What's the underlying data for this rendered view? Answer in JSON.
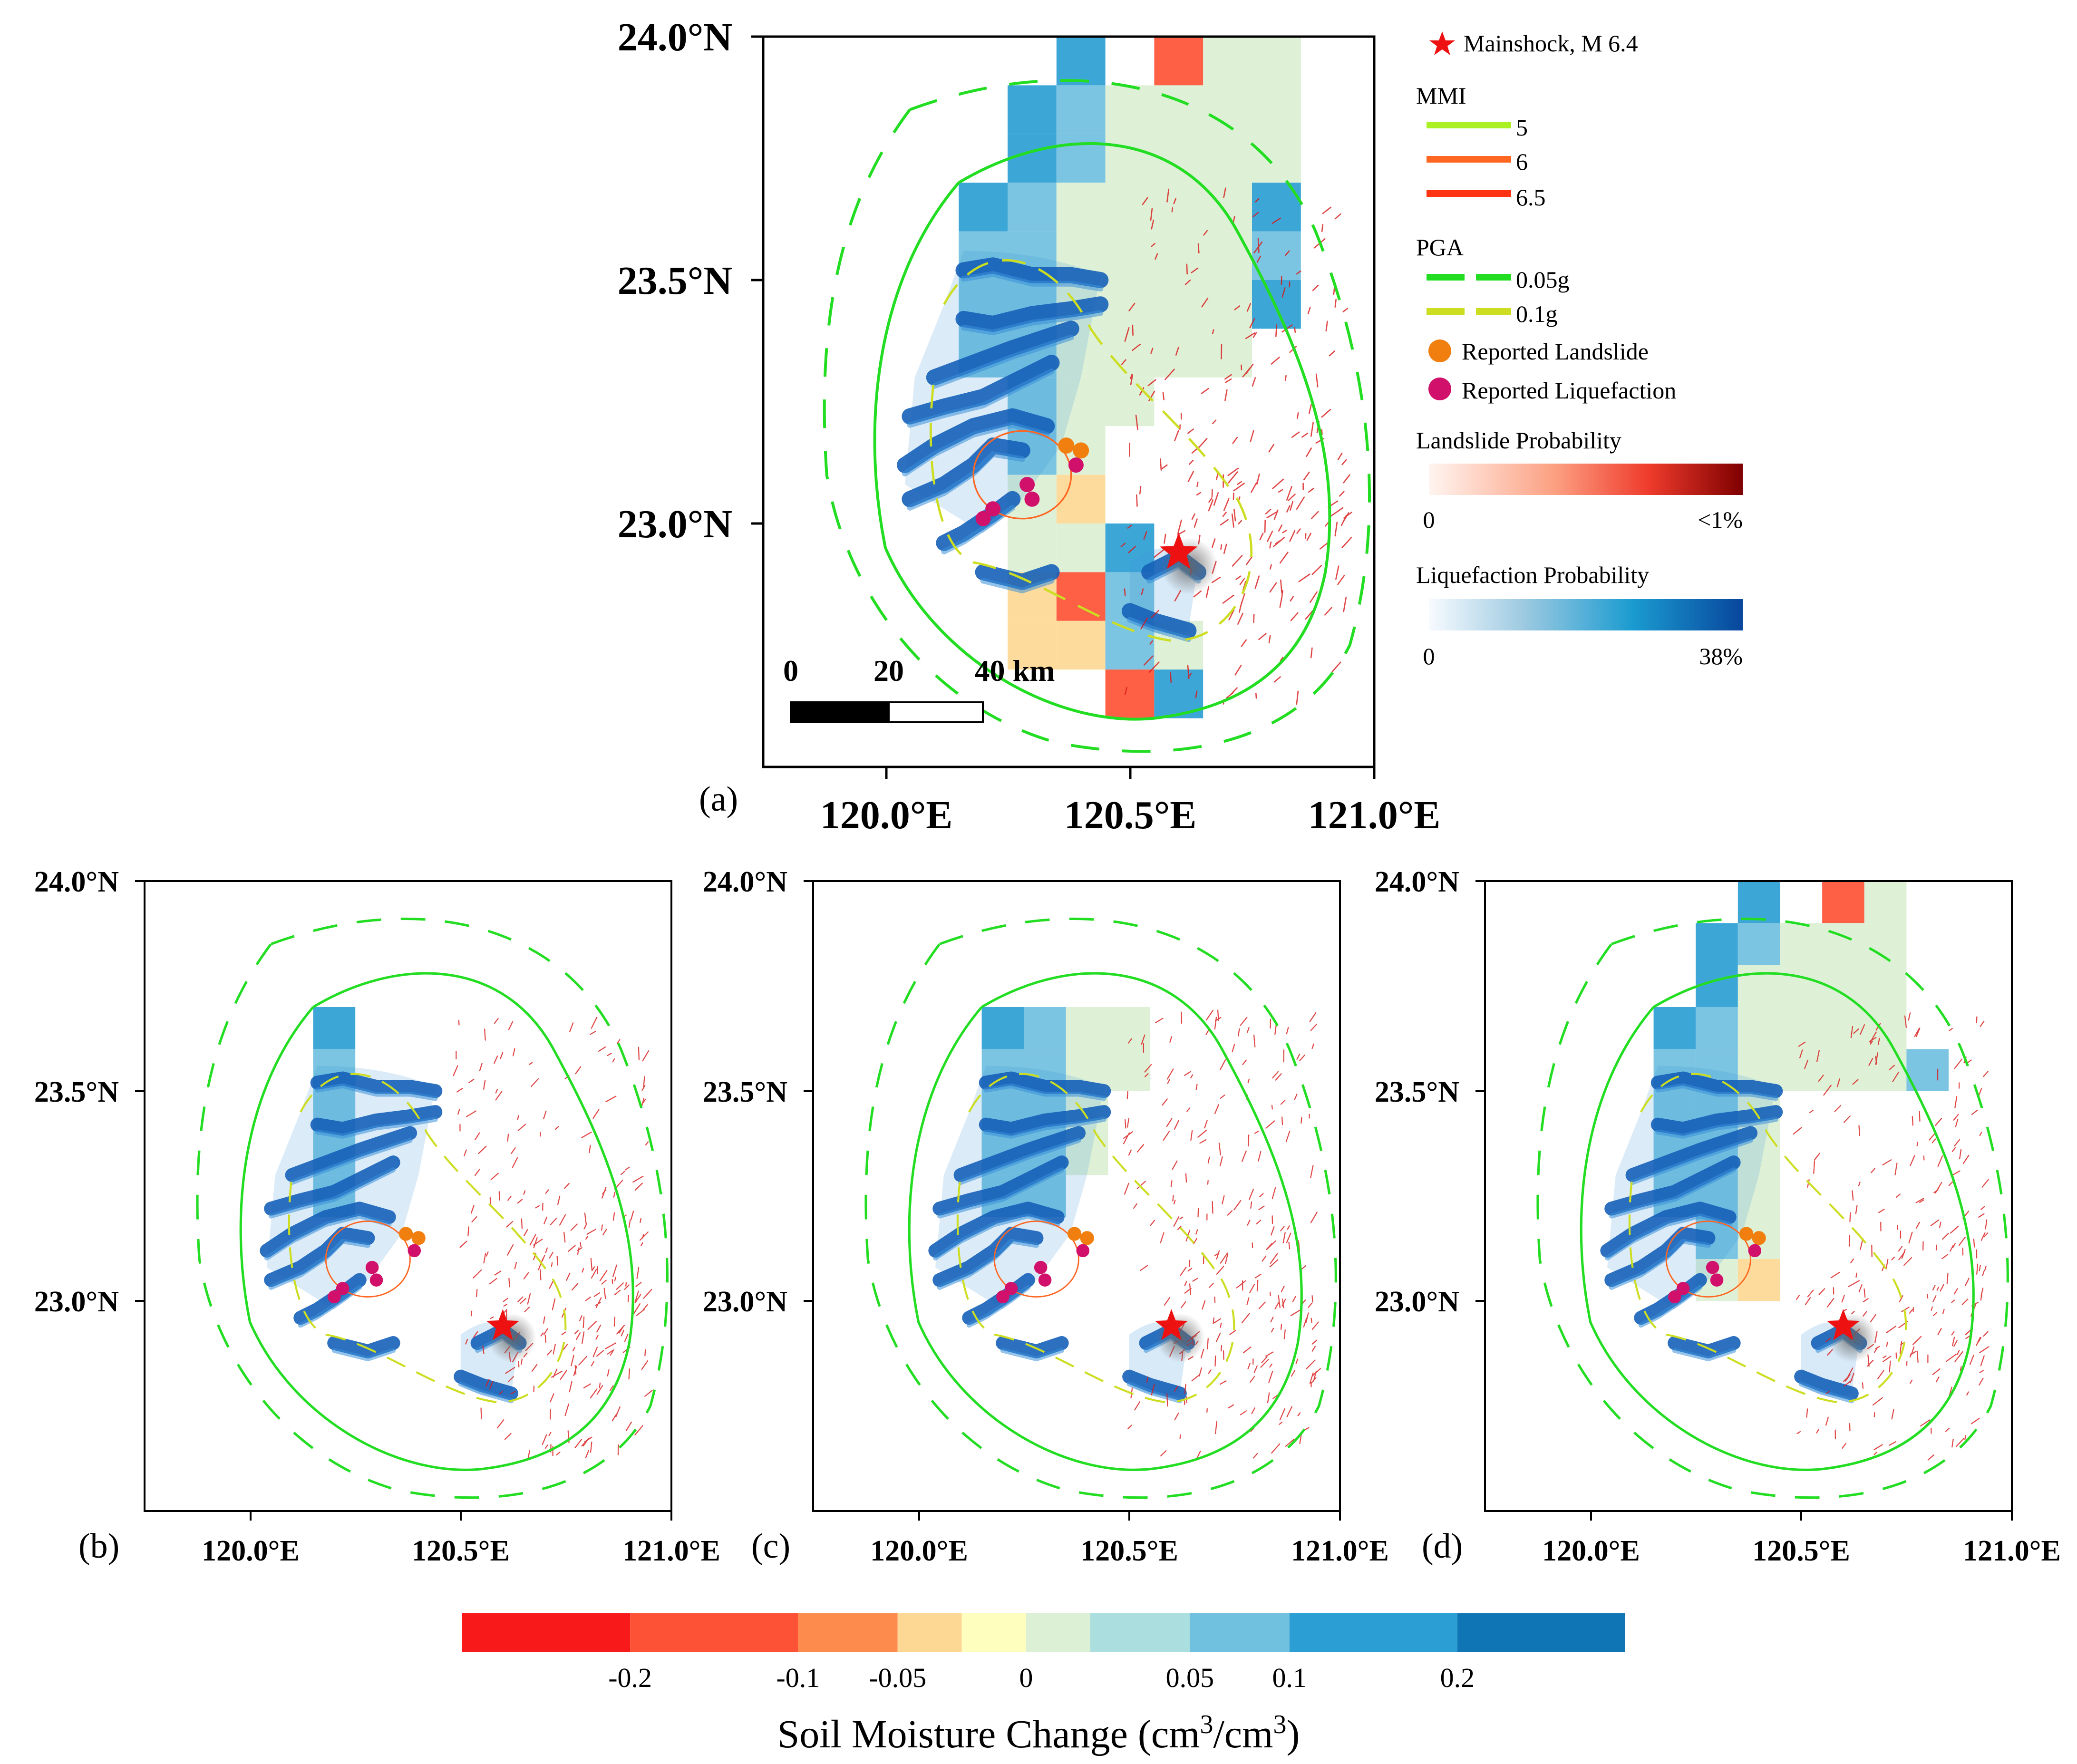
{
  "figure": {
    "colors": {
      "frame": "#000000",
      "pga_005": "#22dd22",
      "pga_01": "#ccdd22",
      "mmi_5": "#aaf022",
      "mmi_6": "#ff6622",
      "mmi_65": "#ff3311",
      "landslide_point": "#f07f10",
      "liquefaction_point": "#d0106a",
      "star": "#ee1111",
      "liq_dark": "#1560b8",
      "liq_light": "#3a90d8",
      "landslide_red": "#d81818"
    }
  },
  "axes": {
    "lat_ticks": [
      "24.0°N",
      "23.5°N",
      "23.0°N"
    ],
    "lon_ticks": [
      "120.0°E",
      "120.5°E",
      "121.0°E"
    ]
  },
  "panels": [
    {
      "label": "(a)"
    },
    {
      "label": "(b)"
    },
    {
      "label": "(c)"
    },
    {
      "label": "(d)"
    }
  ],
  "scale_bar": {
    "labels": [
      "0",
      "20",
      "40 km"
    ]
  },
  "legend": {
    "mainshock": "Mainshock, M 6.4",
    "mmi_title": "MMI",
    "mmi_levels": [
      "5",
      "6",
      "6.5"
    ],
    "pga_title": "PGA",
    "pga_levels": [
      "0.05g",
      "0.1g"
    ],
    "reported_landslide": "Reported Landslide",
    "reported_liquefaction": "Reported Liquefaction",
    "landslide_prob_title": "Landslide Probability",
    "landslide_prob_min": "0",
    "landslide_prob_max": "<1%",
    "liquefaction_prob_title": "Liquefaction Probability",
    "liquefaction_prob_min": "0",
    "liquefaction_prob_max": "38%"
  },
  "colorbar": {
    "title_main": "Soil Moisture Change (cm",
    "title_sup1": "3",
    "title_mid": "/cm",
    "title_sup2": "3",
    "title_end": ")",
    "tick_labels": [
      "-0.2",
      "-0.1",
      "-0.05",
      "0",
      "0.05",
      "0.1",
      "0.2"
    ],
    "tick_values": [
      -0.2,
      -0.1,
      -0.05,
      0,
      0.05,
      0.1,
      0.2
    ],
    "bins": [
      -0.3,
      -0.2,
      -0.1,
      -0.05,
      -0.025,
      0,
      0.025,
      0.05,
      0.1,
      0.2,
      0.3
    ],
    "colors": [
      "#f81a1a",
      "#fe5236",
      "#fd8b4e",
      "#fdd894",
      "#fefebe",
      "#dbf0d4",
      "#abdfdf",
      "#70c0df",
      "#2b9fd4",
      "#1075b4"
    ]
  },
  "map_data": {
    "mainshock": {
      "lon": 120.6,
      "lat": 22.94,
      "magnitude": 6.4
    },
    "reported_landslides": [
      {
        "lon": 120.37,
        "lat": 23.16
      },
      {
        "lon": 120.4,
        "lat": 23.15
      }
    ],
    "reported_liquefaction": [
      {
        "lon": 120.29,
        "lat": 23.08
      },
      {
        "lon": 120.3,
        "lat": 23.05
      },
      {
        "lon": 120.22,
        "lat": 23.03
      },
      {
        "lon": 120.2,
        "lat": 23.01
      },
      {
        "lon": 120.39,
        "lat": 23.12
      }
    ],
    "soil_moisture_grid": {
      "resolution_deg": 0.1,
      "panel_a": [
        {
          "lon": 120.4,
          "lat": 23.95,
          "v": 0.12
        },
        {
          "lon": 120.6,
          "lat": 23.95,
          "v": -0.12
        },
        {
          "lon": 120.7,
          "lat": 23.95,
          "v": 0.01
        },
        {
          "lon": 120.8,
          "lat": 23.95,
          "v": 0.01
        },
        {
          "lon": 120.3,
          "lat": 23.85,
          "v": 0.1
        },
        {
          "lon": 120.4,
          "lat": 23.85,
          "v": 0.05
        },
        {
          "lon": 120.5,
          "lat": 23.85,
          "v": 0.02
        },
        {
          "lon": 120.6,
          "lat": 23.85,
          "v": 0.02
        },
        {
          "lon": 120.7,
          "lat": 23.85,
          "v": 0.01
        },
        {
          "lon": 120.8,
          "lat": 23.85,
          "v": 0.01
        },
        {
          "lon": 120.3,
          "lat": 23.75,
          "v": 0.1
        },
        {
          "lon": 120.4,
          "lat": 23.75,
          "v": 0.05
        },
        {
          "lon": 120.5,
          "lat": 23.75,
          "v": 0.02
        },
        {
          "lon": 120.6,
          "lat": 23.75,
          "v": 0.01
        },
        {
          "lon": 120.7,
          "lat": 23.75,
          "v": 0.01
        },
        {
          "lon": 120.8,
          "lat": 23.75,
          "v": 0.02
        },
        {
          "lon": 120.2,
          "lat": 23.65,
          "v": 0.1
        },
        {
          "lon": 120.3,
          "lat": 23.65,
          "v": 0.05
        },
        {
          "lon": 120.4,
          "lat": 23.65,
          "v": 0.02
        },
        {
          "lon": 120.5,
          "lat": 23.65,
          "v": 0.02
        },
        {
          "lon": 120.6,
          "lat": 23.65,
          "v": 0.01
        },
        {
          "lon": 120.7,
          "lat": 23.65,
          "v": 0.01
        },
        {
          "lon": 120.8,
          "lat": 23.65,
          "v": 0.15
        },
        {
          "lon": 120.2,
          "lat": 23.55,
          "v": 0.05
        },
        {
          "lon": 120.3,
          "lat": 23.55,
          "v": 0.05
        },
        {
          "lon": 120.4,
          "lat": 23.55,
          "v": 0.01
        },
        {
          "lon": 120.5,
          "lat": 23.55,
          "v": 0.01
        },
        {
          "lon": 120.6,
          "lat": 23.55,
          "v": 0.01
        },
        {
          "lon": 120.7,
          "lat": 23.55,
          "v": 0.01
        },
        {
          "lon": 120.8,
          "lat": 23.55,
          "v": 0.05
        },
        {
          "lon": 120.2,
          "lat": 23.45,
          "v": 0.05
        },
        {
          "lon": 120.3,
          "lat": 23.45,
          "v": 0.05
        },
        {
          "lon": 120.4,
          "lat": 23.45,
          "v": 0.01
        },
        {
          "lon": 120.5,
          "lat": 23.45,
          "v": 0.01
        },
        {
          "lon": 120.6,
          "lat": 23.45,
          "v": 0.01
        },
        {
          "lon": 120.7,
          "lat": 23.45,
          "v": 0.01
        },
        {
          "lon": 120.8,
          "lat": 23.45,
          "v": 0.1
        },
        {
          "lon": 120.2,
          "lat": 23.35,
          "v": 0.05
        },
        {
          "lon": 120.3,
          "lat": 23.35,
          "v": 0.05
        },
        {
          "lon": 120.4,
          "lat": 23.35,
          "v": 0.01
        },
        {
          "lon": 120.5,
          "lat": 23.35,
          "v": 0.01
        },
        {
          "lon": 120.6,
          "lat": 23.35,
          "v": 0.01
        },
        {
          "lon": 120.7,
          "lat": 23.35,
          "v": 0.01
        },
        {
          "lon": 120.3,
          "lat": 23.25,
          "v": 0.05
        },
        {
          "lon": 120.4,
          "lat": 23.25,
          "v": 0.01
        },
        {
          "lon": 120.5,
          "lat": 23.25,
          "v": 0.01
        },
        {
          "lon": 120.3,
          "lat": 23.15,
          "v": 0.05
        },
        {
          "lon": 120.4,
          "lat": 23.15,
          "v": 0.01
        },
        {
          "lon": 120.3,
          "lat": 23.05,
          "v": 0.02
        },
        {
          "lon": 120.4,
          "lat": 23.05,
          "v": -0.04
        },
        {
          "lon": 120.3,
          "lat": 22.95,
          "v": 0.01
        },
        {
          "lon": 120.4,
          "lat": 22.95,
          "v": 0.02
        },
        {
          "lon": 120.5,
          "lat": 22.95,
          "v": 0.1
        },
        {
          "lon": 120.3,
          "lat": 22.85,
          "v": -0.04
        },
        {
          "lon": 120.4,
          "lat": 22.85,
          "v": -0.15
        },
        {
          "lon": 120.5,
          "lat": 22.85,
          "v": 0.05
        },
        {
          "lon": 120.3,
          "lat": 22.75,
          "v": -0.04
        },
        {
          "lon": 120.4,
          "lat": 22.75,
          "v": -0.04
        },
        {
          "lon": 120.5,
          "lat": 22.75,
          "v": 0.05
        },
        {
          "lon": 120.6,
          "lat": 22.75,
          "v": 0.02
        },
        {
          "lon": 120.5,
          "lat": 22.65,
          "v": -0.15
        },
        {
          "lon": 120.6,
          "lat": 22.65,
          "v": 0.1
        }
      ],
      "panel_b": [
        {
          "lon": 120.2,
          "lat": 23.65,
          "v": 0.1
        },
        {
          "lon": 120.2,
          "lat": 23.55,
          "v": 0.05
        },
        {
          "lon": 120.2,
          "lat": 23.45,
          "v": 0.05
        },
        {
          "lon": 120.2,
          "lat": 23.35,
          "v": 0.05
        },
        {
          "lon": 120.2,
          "lat": 23.25,
          "v": 0.05
        }
      ],
      "panel_c": [
        {
          "lon": 120.2,
          "lat": 23.65,
          "v": 0.1
        },
        {
          "lon": 120.3,
          "lat": 23.65,
          "v": 0.05
        },
        {
          "lon": 120.4,
          "lat": 23.65,
          "v": 0.02
        },
        {
          "lon": 120.5,
          "lat": 23.65,
          "v": 0.02
        },
        {
          "lon": 120.2,
          "lat": 23.55,
          "v": 0.05
        },
        {
          "lon": 120.3,
          "lat": 23.55,
          "v": 0.05
        },
        {
          "lon": 120.4,
          "lat": 23.55,
          "v": 0.02
        },
        {
          "lon": 120.5,
          "lat": 23.55,
          "v": 0.01
        },
        {
          "lon": 120.2,
          "lat": 23.45,
          "v": 0.05
        },
        {
          "lon": 120.3,
          "lat": 23.45,
          "v": 0.05
        },
        {
          "lon": 120.4,
          "lat": 23.45,
          "v": 0.02
        },
        {
          "lon": 120.2,
          "lat": 23.35,
          "v": 0.05
        },
        {
          "lon": 120.3,
          "lat": 23.35,
          "v": 0.05
        },
        {
          "lon": 120.4,
          "lat": 23.35,
          "v": 0.02
        },
        {
          "lon": 120.2,
          "lat": 23.25,
          "v": 0.05
        },
        {
          "lon": 120.3,
          "lat": 23.25,
          "v": 0.05
        }
      ],
      "panel_d": [
        {
          "lon": 120.4,
          "lat": 23.95,
          "v": 0.12
        },
        {
          "lon": 120.6,
          "lat": 23.95,
          "v": -0.12
        },
        {
          "lon": 120.7,
          "lat": 23.95,
          "v": 0.01
        },
        {
          "lon": 120.3,
          "lat": 23.85,
          "v": 0.1
        },
        {
          "lon": 120.4,
          "lat": 23.85,
          "v": 0.05
        },
        {
          "lon": 120.5,
          "lat": 23.85,
          "v": 0.02
        },
        {
          "lon": 120.6,
          "lat": 23.85,
          "v": 0.02
        },
        {
          "lon": 120.7,
          "lat": 23.85,
          "v": 0.01
        },
        {
          "lon": 120.3,
          "lat": 23.75,
          "v": 0.1
        },
        {
          "lon": 120.4,
          "lat": 23.75,
          "v": 0.02
        },
        {
          "lon": 120.5,
          "lat": 23.75,
          "v": 0.02
        },
        {
          "lon": 120.6,
          "lat": 23.75,
          "v": 0.01
        },
        {
          "lon": 120.7,
          "lat": 23.75,
          "v": 0.01
        },
        {
          "lon": 120.2,
          "lat": 23.65,
          "v": 0.1
        },
        {
          "lon": 120.3,
          "lat": 23.65,
          "v": 0.05
        },
        {
          "lon": 120.4,
          "lat": 23.65,
          "v": 0.02
        },
        {
          "lon": 120.5,
          "lat": 23.65,
          "v": 0.02
        },
        {
          "lon": 120.6,
          "lat": 23.65,
          "v": 0.01
        },
        {
          "lon": 120.7,
          "lat": 23.65,
          "v": 0.01
        },
        {
          "lon": 120.2,
          "lat": 23.55,
          "v": 0.05
        },
        {
          "lon": 120.3,
          "lat": 23.55,
          "v": 0.05
        },
        {
          "lon": 120.4,
          "lat": 23.55,
          "v": 0.02
        },
        {
          "lon": 120.5,
          "lat": 23.55,
          "v": 0.01
        },
        {
          "lon": 120.6,
          "lat": 23.55,
          "v": 0.01
        },
        {
          "lon": 120.7,
          "lat": 23.55,
          "v": 0.01
        },
        {
          "lon": 120.8,
          "lat": 23.55,
          "v": 0.05
        },
        {
          "lon": 120.2,
          "lat": 23.45,
          "v": 0.05
        },
        {
          "lon": 120.3,
          "lat": 23.45,
          "v": 0.05
        },
        {
          "lon": 120.4,
          "lat": 23.45,
          "v": 0.02
        },
        {
          "lon": 120.2,
          "lat": 23.35,
          "v": 0.05
        },
        {
          "lon": 120.3,
          "lat": 23.35,
          "v": 0.05
        },
        {
          "lon": 120.4,
          "lat": 23.35,
          "v": 0.02
        },
        {
          "lon": 120.2,
          "lat": 23.25,
          "v": 0.05
        },
        {
          "lon": 120.3,
          "lat": 23.25,
          "v": 0.05
        },
        {
          "lon": 120.4,
          "lat": 23.25,
          "v": 0.02
        },
        {
          "lon": 120.3,
          "lat": 23.15,
          "v": 0.05
        },
        {
          "lon": 120.4,
          "lat": 23.15,
          "v": 0.02
        },
        {
          "lon": 120.3,
          "lat": 23.05,
          "v": 0.02
        },
        {
          "lon": 120.4,
          "lat": 23.05,
          "v": -0.04
        }
      ]
    }
  }
}
